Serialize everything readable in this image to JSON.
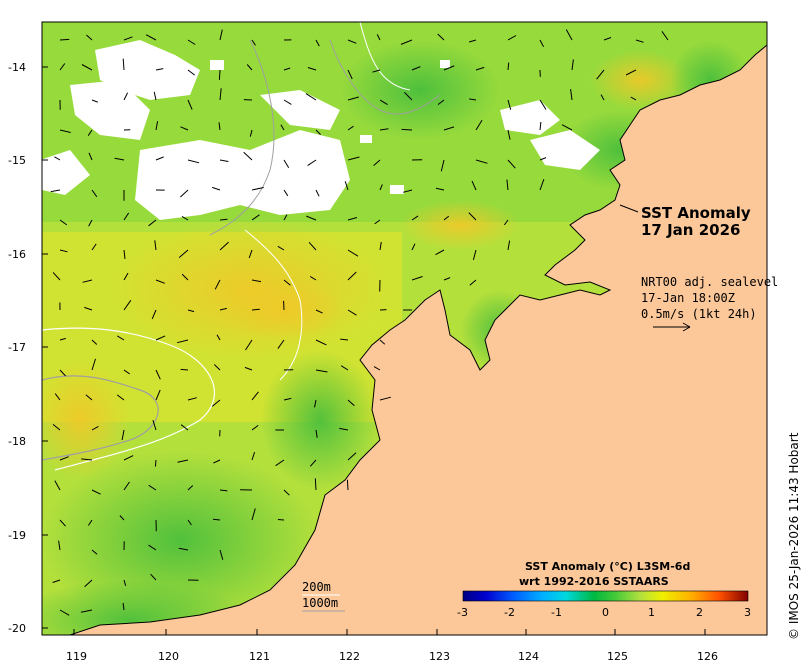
{
  "map": {
    "title_line1": "SST Anomaly",
    "title_line2": "17 Jan 2026",
    "vector_label_line1": "NRT00 adj. sealevel",
    "vector_label_line2": "17-Jan 18:00Z",
    "vector_label_line3": "0.5m/s (1kt 24h)",
    "isobath_label_1": "200m",
    "isobath_label_2": "1000m",
    "colorbar_title_line1": "SST Anomaly (°C) L3SM-6d",
    "colorbar_title_line2": "wrt 1992-2016 SSTAARS",
    "colorbar_ticks": [
      "-3",
      "-2",
      "-1",
      "0",
      "1",
      "2",
      "3"
    ],
    "colorbar_colors": [
      "#000080",
      "#0000c8",
      "#0050ff",
      "#00a0ff",
      "#00d8e8",
      "#00c040",
      "#3cc83c",
      "#a8e040",
      "#e8e800",
      "#ffb000",
      "#ff6000",
      "#d01000",
      "#800000"
    ],
    "credit": "© IMOS 25-Jan-2026 11:43 Hobart",
    "lon_ticks": [
      "119",
      "120",
      "121",
      "122",
      "123",
      "124",
      "125",
      "126"
    ],
    "lat_ticks": [
      "-14",
      "-15",
      "-16",
      "-17",
      "-18",
      "-19",
      "-20"
    ],
    "land_color": "#fcc89a",
    "cloud_color": "#ffffff",
    "sea_green": "#52c83c",
    "sea_yellowgreen": "#b4e03c",
    "sea_yellow": "#e6e628",
    "sea_orange": "#f0c828"
  }
}
